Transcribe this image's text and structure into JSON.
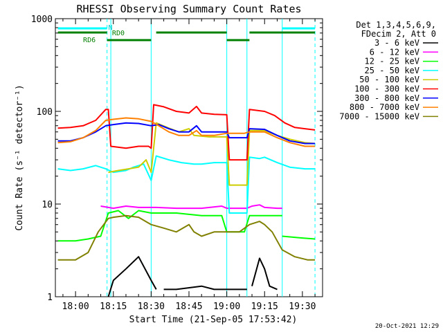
{
  "chart_data": {
    "type": "line",
    "title": "RHESSI Observing Summary Count Rates",
    "xlabel": "Start Time (21-Sep-05 17:53:42)",
    "ylabel": "Count Rate (s⁻¹ detector⁻¹)",
    "x_tick_labels": [
      "18:00",
      "18:15",
      "18:30",
      "18:45",
      "19:00",
      "19:15",
      "19:30"
    ],
    "x_ticks_min": [
      5,
      20,
      35,
      50,
      65,
      80,
      95
    ],
    "xlim_min": [
      -3,
      103
    ],
    "y_scale": "log",
    "ylim": [
      1,
      1000
    ],
    "y_tick_labels": [
      "1",
      "10",
      "100",
      "1000"
    ],
    "y_tick_values": [
      1,
      10,
      100,
      1000
    ],
    "grid": false,
    "legend_header": [
      "Det 1,3,4,5,6,9,",
      "FDecim 2, Att 0"
    ],
    "legend_placement": "right",
    "series": [
      {
        "name": "3 - 6 keV",
        "color": "#000000",
        "segments": [
          [
            [
              18,
              1
            ],
            [
              20,
              1.5
            ],
            [
              25,
              2
            ],
            [
              30,
              2.7
            ],
            [
              35,
              1.5
            ],
            [
              37,
              1.2
            ]
          ],
          [
            [
              40,
              1.2
            ],
            [
              45,
              1.2
            ],
            [
              55,
              1.3
            ],
            [
              60,
              1.2
            ],
            [
              65,
              1.2
            ],
            [
              70,
              1.2
            ],
            [
              73,
              1.2
            ]
          ],
          [
            [
              75,
              1.3
            ],
            [
              78,
              2.6
            ],
            [
              80,
              2
            ],
            [
              82,
              1.3
            ],
            [
              85,
              1.2
            ]
          ]
        ]
      },
      {
        "name": "6 - 12 keV",
        "color": "#ff00ff",
        "segments": [
          [
            [
              15,
              9.5
            ],
            [
              20,
              9
            ],
            [
              25,
              9.5
            ],
            [
              30,
              9.2
            ],
            [
              37,
              9.2
            ],
            [
              45,
              9
            ],
            [
              55,
              9
            ],
            [
              63,
              9.5
            ],
            [
              65,
              9
            ],
            [
              70,
              9
            ],
            [
              73,
              9
            ],
            [
              75,
              9.5
            ],
            [
              78,
              9.8
            ],
            [
              80,
              9.2
            ],
            [
              85,
              9
            ],
            [
              87,
              9
            ]
          ]
        ]
      },
      {
        "name": "12 - 25 keV",
        "color": "#00ff00",
        "segments": [
          [
            [
              -2,
              4
            ],
            [
              5,
              4
            ],
            [
              10,
              4.2
            ],
            [
              15,
              4.5
            ],
            [
              18,
              8
            ],
            [
              22,
              8.5
            ],
            [
              26,
              7
            ],
            [
              30,
              8.5
            ],
            [
              35,
              8
            ],
            [
              40,
              8
            ],
            [
              45,
              8
            ],
            [
              55,
              7.5
            ],
            [
              63,
              7.5
            ],
            [
              65,
              5
            ],
            [
              72,
              5
            ],
            [
              74,
              7.5
            ],
            [
              80,
              7.5
            ],
            [
              87,
              7.5
            ]
          ],
          [
            [
              87,
              4.5
            ],
            [
              95,
              4.3
            ],
            [
              100,
              4.2
            ]
          ]
        ]
      },
      {
        "name": "25 - 50 keV",
        "color": "#00ffff",
        "segments": [
          [
            [
              -2,
              24
            ],
            [
              3,
              23
            ],
            [
              8,
              24
            ],
            [
              13,
              26
            ],
            [
              17,
              24
            ],
            [
              20,
              22
            ],
            [
              25,
              23
            ],
            [
              28,
              25
            ],
            [
              32,
              27
            ],
            [
              35,
              18
            ],
            [
              37,
              33
            ],
            [
              42,
              30
            ],
            [
              47,
              28
            ],
            [
              52,
              27
            ],
            [
              55,
              27
            ],
            [
              60,
              28
            ],
            [
              65,
              28
            ],
            [
              66,
              8
            ],
            [
              72,
              8
            ],
            [
              73,
              8
            ],
            [
              74,
              32
            ],
            [
              78,
              31
            ],
            [
              80,
              32
            ],
            [
              85,
              28
            ],
            [
              90,
              25
            ],
            [
              96,
              24
            ],
            [
              100,
              24
            ]
          ]
        ]
      },
      {
        "name": "50 - 100 keV",
        "color": "#cccc00",
        "segments": [
          [
            [
              18,
              22
            ],
            [
              22,
              23
            ],
            [
              26,
              24
            ],
            [
              30,
              25
            ],
            [
              33,
              30
            ],
            [
              35,
              22
            ],
            [
              37,
              75
            ],
            [
              42,
              66
            ],
            [
              46,
              60
            ],
            [
              50,
              65
            ],
            [
              52,
              55
            ],
            [
              58,
              53
            ],
            [
              63,
              53
            ],
            [
              65,
              53
            ],
            [
              66,
              16
            ],
            [
              72,
              16
            ],
            [
              73,
              16
            ],
            [
              74,
              62
            ],
            [
              80,
              62
            ],
            [
              85,
              55
            ],
            [
              90,
              50
            ],
            [
              96,
              46
            ],
            [
              100,
              45
            ]
          ]
        ]
      },
      {
        "name": "100 - 300 keV",
        "color": "#ff0000",
        "segments": [
          [
            [
              -2,
              66
            ],
            [
              3,
              67
            ],
            [
              8,
              70
            ],
            [
              13,
              80
            ],
            [
              17,
              105
            ],
            [
              18,
              105
            ],
            [
              19,
              42
            ],
            [
              25,
              40
            ],
            [
              30,
              42
            ],
            [
              34,
              42
            ],
            [
              35,
              40
            ],
            [
              36,
              118
            ],
            [
              40,
              112
            ],
            [
              45,
              100
            ],
            [
              50,
              96
            ],
            [
              53,
              113
            ],
            [
              55,
              96
            ],
            [
              60,
              93
            ],
            [
              65,
              92
            ],
            [
              66,
              30
            ],
            [
              72,
              30
            ],
            [
              73,
              30
            ],
            [
              74,
              105
            ],
            [
              80,
              100
            ],
            [
              84,
              90
            ],
            [
              88,
              75
            ],
            [
              92,
              67
            ],
            [
              96,
              65
            ],
            [
              100,
              63
            ]
          ]
        ]
      },
      {
        "name": "300 - 800 keV",
        "color": "#0000ff",
        "segments": [
          [
            [
              -2,
              48
            ],
            [
              3,
              48
            ],
            [
              8,
              52
            ],
            [
              13,
              60
            ],
            [
              17,
              70
            ],
            [
              20,
              72
            ],
            [
              25,
              75
            ],
            [
              30,
              74
            ],
            [
              35,
              70
            ],
            [
              38,
              72
            ],
            [
              42,
              65
            ],
            [
              46,
              60
            ],
            [
              50,
              60
            ],
            [
              53,
              70
            ],
            [
              55,
              60
            ],
            [
              60,
              60
            ],
            [
              65,
              60
            ],
            [
              66,
              52
            ],
            [
              72,
              52
            ],
            [
              73,
              52
            ],
            [
              74,
              65
            ],
            [
              80,
              64
            ],
            [
              85,
              55
            ],
            [
              90,
              48
            ],
            [
              96,
              45
            ],
            [
              100,
              45
            ]
          ]
        ]
      },
      {
        "name": "800 - 7000 keV",
        "color": "#ff8000",
        "segments": [
          [
            [
              -2,
              46
            ],
            [
              3,
              47
            ],
            [
              8,
              52
            ],
            [
              13,
              62
            ],
            [
              17,
              80
            ],
            [
              20,
              82
            ],
            [
              25,
              85
            ],
            [
              30,
              83
            ],
            [
              35,
              78
            ],
            [
              38,
              70
            ],
            [
              42,
              60
            ],
            [
              46,
              55
            ],
            [
              50,
              55
            ],
            [
              53,
              62
            ],
            [
              55,
              55
            ],
            [
              60,
              55
            ],
            [
              65,
              58
            ],
            [
              66,
              58
            ],
            [
              72,
              58
            ],
            [
              74,
              60
            ],
            [
              80,
              60
            ],
            [
              85,
              52
            ],
            [
              90,
              46
            ],
            [
              96,
              42
            ],
            [
              100,
              42
            ]
          ]
        ]
      },
      {
        "name": "7000 - 15000 keV",
        "color": "#808000",
        "segments": [
          [
            [
              -2,
              2.5
            ],
            [
              5,
              2.5
            ],
            [
              10,
              3
            ],
            [
              14,
              5
            ],
            [
              18,
              7
            ],
            [
              20,
              7.2
            ],
            [
              25,
              7.5
            ],
            [
              30,
              7.2
            ],
            [
              35,
              6
            ],
            [
              40,
              5.5
            ],
            [
              45,
              5
            ],
            [
              50,
              6
            ],
            [
              52,
              5
            ],
            [
              55,
              4.5
            ],
            [
              60,
              5
            ],
            [
              65,
              5
            ],
            [
              66,
              5
            ],
            [
              70,
              5
            ],
            [
              74,
              6
            ],
            [
              78,
              6.5
            ],
            [
              80,
              6
            ],
            [
              83,
              5
            ],
            [
              87,
              3.2
            ],
            [
              92,
              2.7
            ],
            [
              97,
              2.5
            ],
            [
              100,
              2.5
            ]
          ]
        ]
      }
    ],
    "flag_bars": [
      {
        "label": "",
        "color": "#00ffff",
        "y": 1,
        "segments": [
          [
            -2,
            17.5
          ],
          [
            87,
            100
          ]
        ]
      },
      {
        "label": "N",
        "color": "#00ffff",
        "label_pos": 18
      },
      {
        "label": "RD0",
        "color": "#008000",
        "y": 2,
        "segments": [
          [
            -2,
            17.5
          ],
          [
            37,
            65
          ],
          [
            74,
            100
          ]
        ]
      },
      {
        "label": "RD6",
        "color": "#008000",
        "y": 3,
        "segments": [
          [
            17.5,
            35
          ],
          [
            65,
            74
          ]
        ]
      }
    ],
    "vertical_markers": [
      {
        "x": 17.5,
        "style": "dashed",
        "color": "#00ffff"
      },
      {
        "x": 19,
        "style": "solid",
        "color": "#00ffff"
      },
      {
        "x": 35,
        "style": "solid",
        "color": "#00ffff"
      },
      {
        "x": 65,
        "style": "solid",
        "color": "#00ffff"
      },
      {
        "x": 73,
        "style": "solid",
        "color": "#00ffff"
      },
      {
        "x": 87,
        "style": "solid",
        "color": "#00ffff"
      },
      {
        "x": 100,
        "style": "dashed",
        "color": "#00ffff"
      }
    ]
  },
  "footer": {
    "date_stamp": "20-Oct-2021 12:29"
  }
}
